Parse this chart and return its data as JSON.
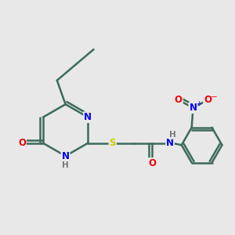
{
  "background_color": "#e8e8e8",
  "bond_color": "#3d6b5a",
  "bond_width": 1.8,
  "atom_colors": {
    "N": "#0000ee",
    "O": "#ee0000",
    "S": "#cccc00",
    "H": "#777777"
  },
  "font_size": 8.5
}
